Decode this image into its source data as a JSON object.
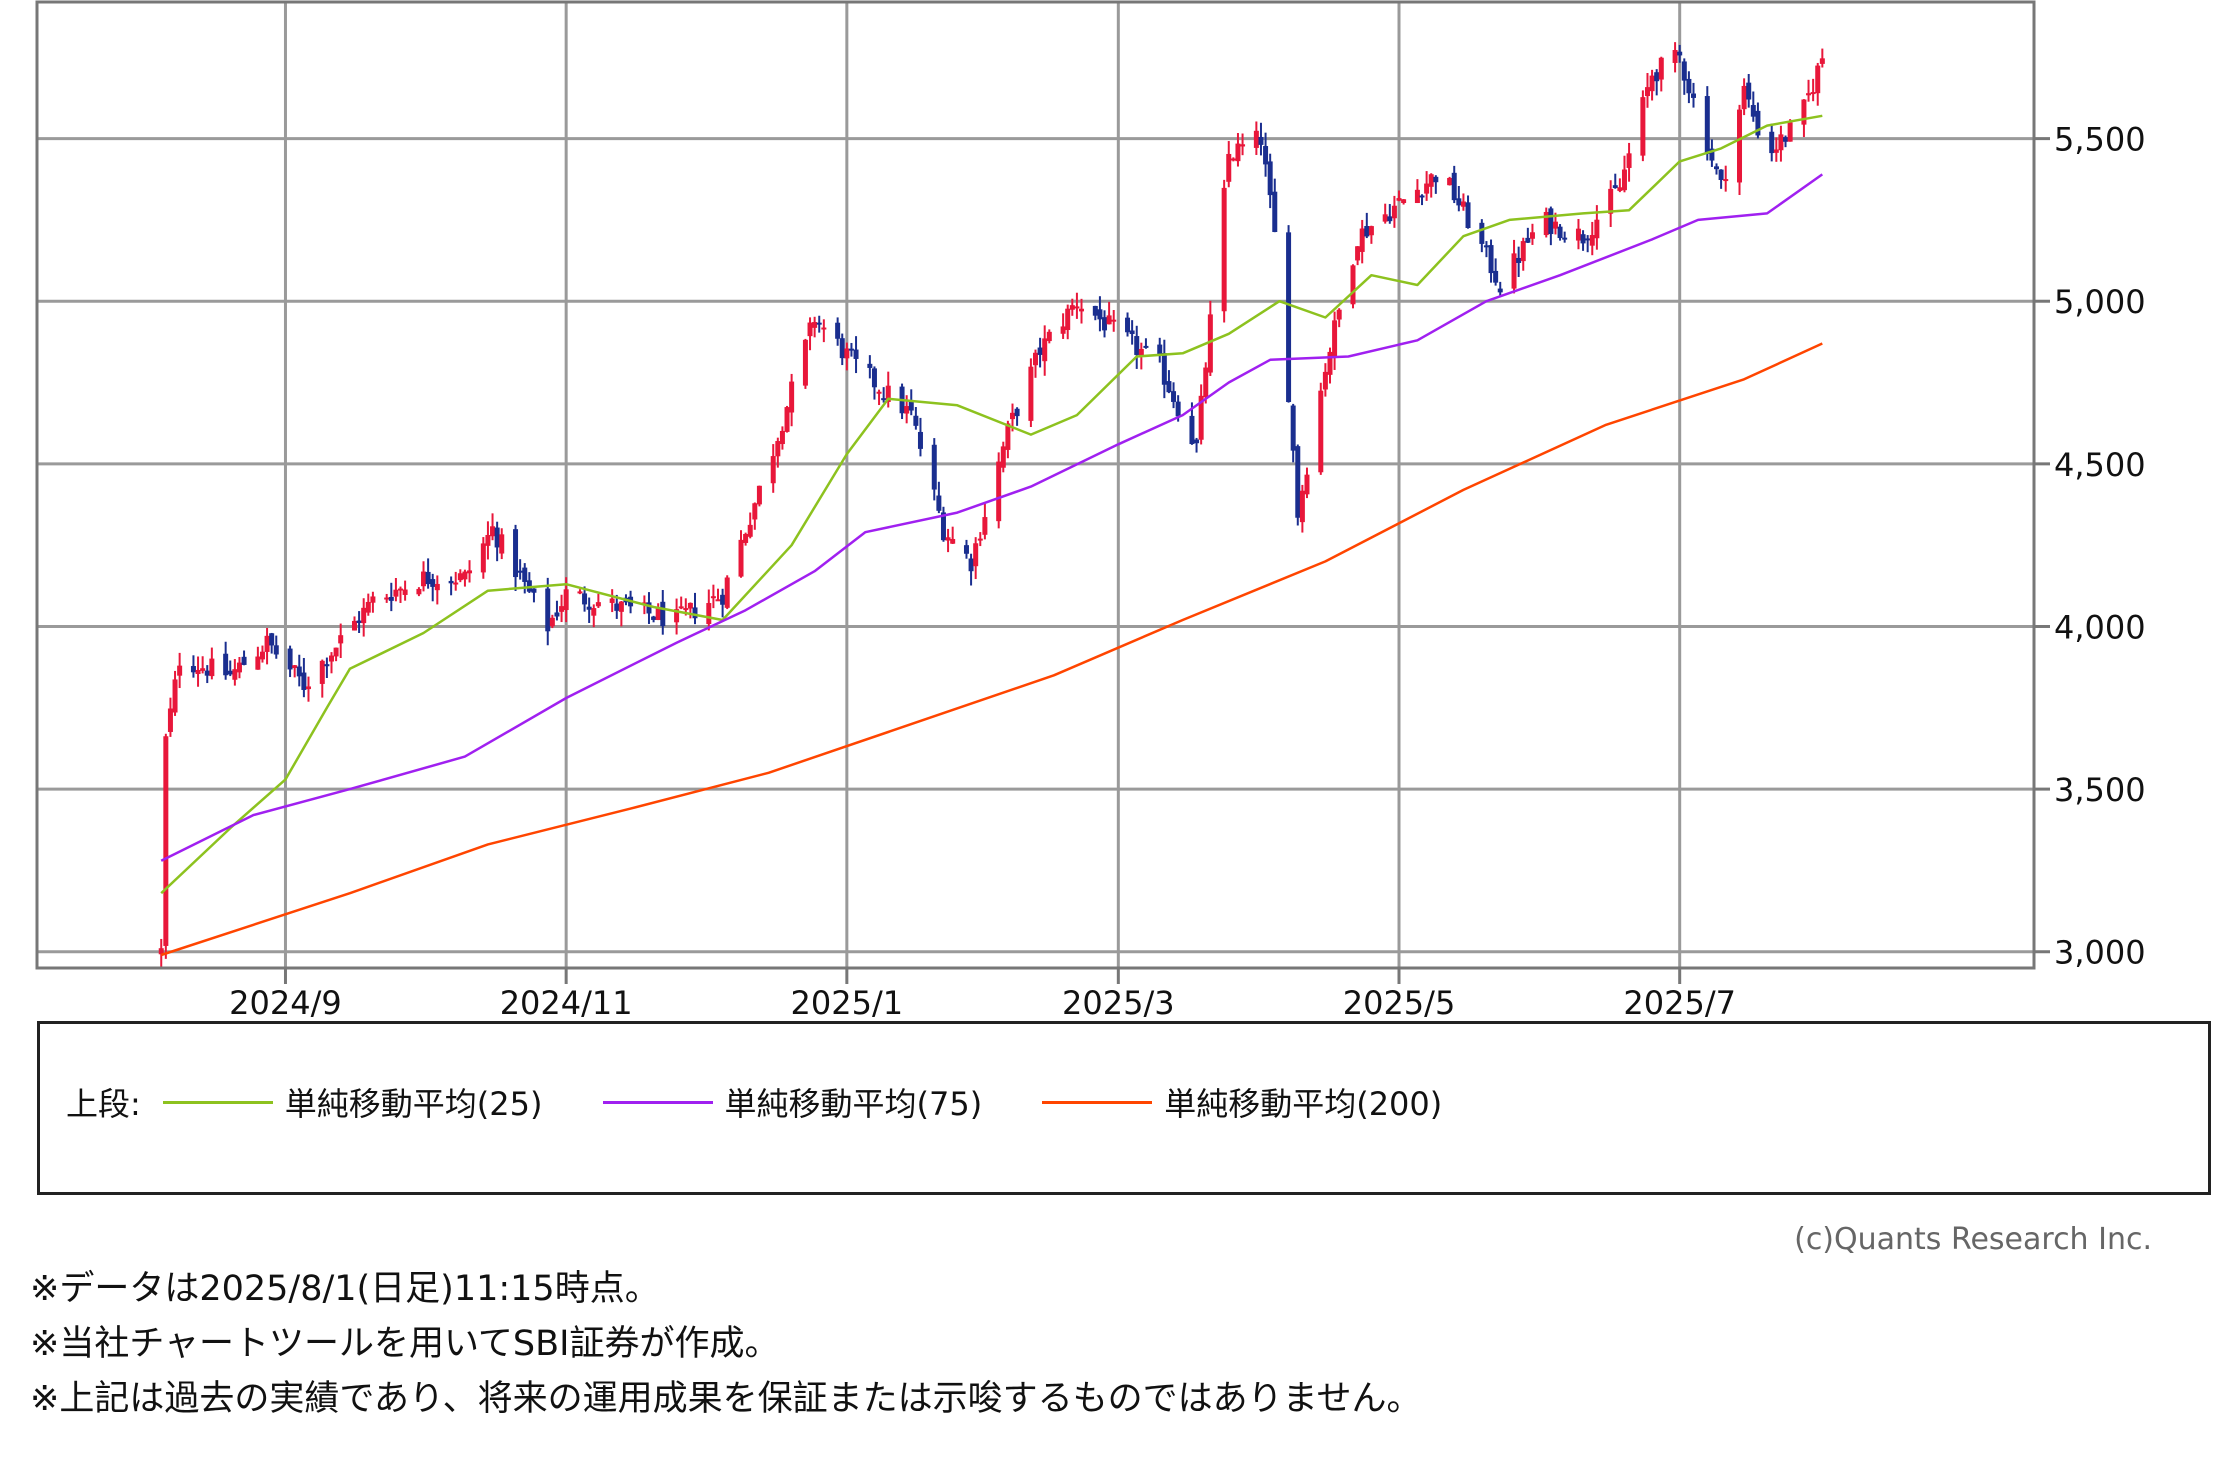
{
  "chart_data": {
    "type": "candlestick",
    "ylim": [
      2950,
      5920
    ],
    "yticks": [
      3000,
      3500,
      4000,
      4500,
      5000,
      5500
    ],
    "ytick_labels": [
      "3,000",
      "3,500",
      "4,000",
      "4,500",
      "5,000",
      "5,500"
    ],
    "xtick_labels": [
      "2024/9",
      "2024/11",
      "2025/1",
      "2025/3",
      "2025/5",
      "2025/7"
    ],
    "xtick_dates": [
      "2024-09-01",
      "2024-11-01",
      "2025-01-01",
      "2025-03-01",
      "2025-05-01",
      "2025-07-01"
    ],
    "xlim": [
      "2024-07-09",
      "2025-09-16"
    ],
    "grid": true,
    "up_color": "#e8173a",
    "down_color": "#1a2e8f",
    "close_anchors": [
      [
        "2024-08-05",
        3000
      ],
      [
        "2024-08-06",
        3650
      ],
      [
        "2024-08-09",
        3900
      ],
      [
        "2024-08-20",
        3850
      ],
      [
        "2024-08-28",
        3950
      ],
      [
        "2024-09-05",
        3820
      ],
      [
        "2024-09-20",
        4080
      ],
      [
        "2024-10-01",
        4150
      ],
      [
        "2024-10-10",
        4150
      ],
      [
        "2024-10-16",
        4300
      ],
      [
        "2024-10-28",
        4000
      ],
      [
        "2024-11-01",
        4100
      ],
      [
        "2024-11-15",
        4050
      ],
      [
        "2024-11-25",
        4020
      ],
      [
        "2024-12-05",
        4100
      ],
      [
        "2024-12-15",
        4500
      ],
      [
        "2024-12-25",
        4950
      ],
      [
        "2025-01-03",
        4800
      ],
      [
        "2025-01-15",
        4650
      ],
      [
        "2025-01-22",
        4300
      ],
      [
        "2025-01-28",
        4200
      ],
      [
        "2025-02-05",
        4600
      ],
      [
        "2025-02-12",
        4850
      ],
      [
        "2025-02-20",
        5000
      ],
      [
        "2025-03-01",
        4900
      ],
      [
        "2025-03-10",
        4800
      ],
      [
        "2025-03-18",
        4550
      ],
      [
        "2025-03-25",
        5450
      ],
      [
        "2025-04-01",
        5500
      ],
      [
        "2025-04-05",
        5100
      ],
      [
        "2025-04-09",
        4350
      ],
      [
        "2025-04-15",
        4800
      ],
      [
        "2025-04-22",
        5200
      ],
      [
        "2025-05-01",
        5300
      ],
      [
        "2025-05-10",
        5400
      ],
      [
        "2025-05-16",
        5250
      ],
      [
        "2025-05-23",
        5050
      ],
      [
        "2025-06-01",
        5250
      ],
      [
        "2025-06-10",
        5200
      ],
      [
        "2025-06-18",
        5350
      ],
      [
        "2025-06-25",
        5700
      ],
      [
        "2025-07-01",
        5750
      ],
      [
        "2025-07-10",
        5350
      ],
      [
        "2025-07-15",
        5650
      ],
      [
        "2025-07-20",
        5450
      ],
      [
        "2025-07-27",
        5550
      ],
      [
        "2025-08-01",
        5750
      ]
    ],
    "series": [
      {
        "name": "単純移動平均(25)",
        "color": "#8dc21f",
        "points": [
          [
            "2024-08-05",
            3180
          ],
          [
            "2024-08-20",
            3380
          ],
          [
            "2024-09-01",
            3530
          ],
          [
            "2024-09-10",
            3750
          ],
          [
            "2024-09-15",
            3870
          ],
          [
            "2024-10-01",
            3980
          ],
          [
            "2024-10-15",
            4110
          ],
          [
            "2024-11-01",
            4130
          ],
          [
            "2024-11-20",
            4060
          ],
          [
            "2024-12-05",
            4020
          ],
          [
            "2024-12-20",
            4250
          ],
          [
            "2025-01-01",
            4530
          ],
          [
            "2025-01-10",
            4700
          ],
          [
            "2025-01-25",
            4680
          ],
          [
            "2025-02-10",
            4590
          ],
          [
            "2025-02-20",
            4650
          ],
          [
            "2025-03-05",
            4830
          ],
          [
            "2025-03-15",
            4840
          ],
          [
            "2025-03-25",
            4900
          ],
          [
            "2025-04-05",
            5000
          ],
          [
            "2025-04-15",
            4950
          ],
          [
            "2025-04-25",
            5080
          ],
          [
            "2025-05-05",
            5050
          ],
          [
            "2025-05-15",
            5200
          ],
          [
            "2025-05-25",
            5250
          ],
          [
            "2025-06-10",
            5270
          ],
          [
            "2025-06-20",
            5280
          ],
          [
            "2025-07-01",
            5430
          ],
          [
            "2025-07-10",
            5470
          ],
          [
            "2025-07-20",
            5540
          ],
          [
            "2025-08-01",
            5570
          ]
        ]
      },
      {
        "name": "単純移動平均(75)",
        "color": "#a020f0",
        "points": [
          [
            "2024-08-05",
            3280
          ],
          [
            "2024-08-25",
            3420
          ],
          [
            "2024-09-15",
            3500
          ],
          [
            "2024-10-10",
            3600
          ],
          [
            "2024-11-01",
            3780
          ],
          [
            "2024-11-25",
            3950
          ],
          [
            "2024-12-10",
            4050
          ],
          [
            "2024-12-25",
            4170
          ],
          [
            "2025-01-05",
            4290
          ],
          [
            "2025-01-25",
            4350
          ],
          [
            "2025-02-10",
            4430
          ],
          [
            "2025-03-01",
            4560
          ],
          [
            "2025-03-15",
            4650
          ],
          [
            "2025-03-25",
            4750
          ],
          [
            "2025-04-03",
            4820
          ],
          [
            "2025-04-20",
            4830
          ],
          [
            "2025-05-05",
            4880
          ],
          [
            "2025-05-20",
            5000
          ],
          [
            "2025-06-05",
            5080
          ],
          [
            "2025-06-25",
            5190
          ],
          [
            "2025-07-05",
            5250
          ],
          [
            "2025-07-20",
            5270
          ],
          [
            "2025-08-01",
            5390
          ]
        ]
      },
      {
        "name": "単純移動平均(200)",
        "color": "#ff4500",
        "points": [
          [
            "2024-08-05",
            2990
          ],
          [
            "2024-09-15",
            3180
          ],
          [
            "2024-10-15",
            3330
          ],
          [
            "2024-11-15",
            3440
          ],
          [
            "2024-12-15",
            3550
          ],
          [
            "2025-01-15",
            3700
          ],
          [
            "2025-02-15",
            3850
          ],
          [
            "2025-03-15",
            4020
          ],
          [
            "2025-04-15",
            4200
          ],
          [
            "2025-05-15",
            4420
          ],
          [
            "2025-06-15",
            4620
          ],
          [
            "2025-07-15",
            4760
          ],
          [
            "2025-08-01",
            4870
          ]
        ]
      }
    ]
  },
  "legend": {
    "title": "上段:",
    "items": [
      {
        "label": "単純移動平均(25)",
        "color": "#8dc21f"
      },
      {
        "label": "単純移動平均(75)",
        "color": "#a020f0"
      },
      {
        "label": "単純移動平均(200)",
        "color": "#ff4500"
      }
    ]
  },
  "credit": "(c)Quants Research Inc.",
  "notes": [
    "※データは2025/8/1(日足)11:15時点。",
    "※当社チャートツールを用いてSBI証券が作成。",
    "※上記は過去の実績であり、将来の運用成果を保証または示唆するものではありません。"
  ]
}
